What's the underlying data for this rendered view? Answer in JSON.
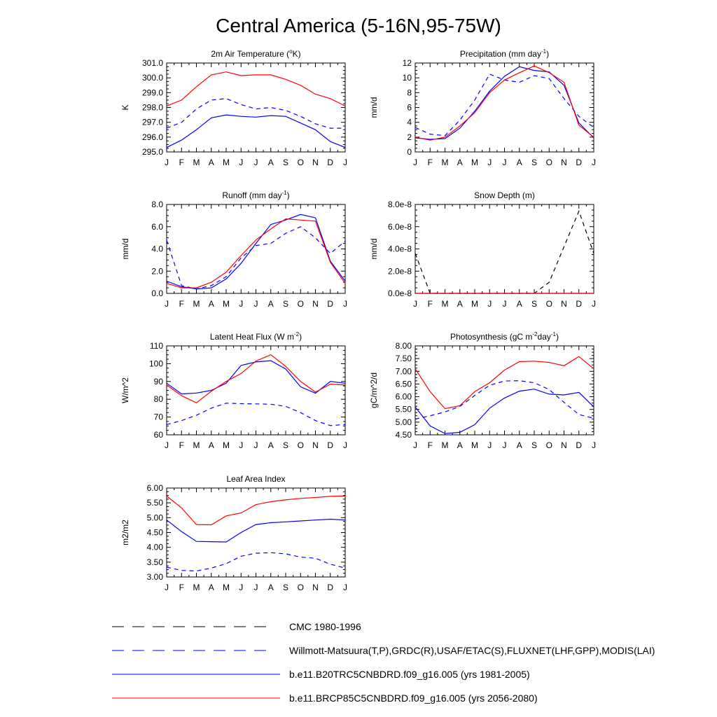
{
  "page_title": "Central America (5-16N,95-75W)",
  "months": [
    "J",
    "F",
    "M",
    "A",
    "M",
    "J",
    "J",
    "A",
    "S",
    "O",
    "N",
    "D",
    "J"
  ],
  "series_styles": {
    "obs_cmc": {
      "color": "#000000",
      "dash": true
    },
    "obs": {
      "color": "#0000ff",
      "dash": true
    },
    "model_hist": {
      "color": "#0000ff",
      "dash": false
    },
    "model_future": {
      "color": "#ff0000",
      "dash": false
    }
  },
  "legend": [
    {
      "key": "obs_cmc",
      "label": "CMC 1980-1996"
    },
    {
      "key": "obs",
      "label": "Willmott-Matsuura(T,P),GRDC(R),USAF/ETAC(S),FLUXNET(LHF,GPP),MODIS(LAI)"
    },
    {
      "key": "model_hist",
      "label": "b.e11.B20TRC5CNBDRD.f09_g16.005 (yrs 1981-2005)"
    },
    {
      "key": "model_future",
      "label": "b.e11.BRCP85C5CNBDRD.f09_g16.005 (yrs 2056-2080)"
    }
  ],
  "chart_data": [
    {
      "id": "tsa",
      "type": "line",
      "title_parts": [
        "2m Air Temperature (",
        {
          "sup": "o"
        },
        "K)"
      ],
      "ylabel": "K",
      "ylim": [
        295.0,
        301.0
      ],
      "yticks": [
        295.0,
        296.0,
        297.0,
        298.0,
        299.0,
        300.0,
        301.0
      ],
      "ytick_labels": [
        "295.0",
        "296.0",
        "297.0",
        "298.0",
        "299.0",
        "300.0",
        "301.0"
      ],
      "series": [
        {
          "key": "obs",
          "name": "Willmott-Matsuura",
          "values": [
            296.6,
            297.0,
            297.9,
            298.5,
            298.6,
            298.2,
            297.9,
            298.0,
            297.8,
            297.4,
            296.9,
            296.6,
            296.6
          ]
        },
        {
          "key": "model_hist",
          "name": "1981-2005",
          "values": [
            295.3,
            295.8,
            296.5,
            297.3,
            297.5,
            297.4,
            297.35,
            297.45,
            297.4,
            296.95,
            296.5,
            295.7,
            295.3
          ]
        },
        {
          "key": "model_future",
          "name": "2056-2080",
          "values": [
            298.1,
            298.5,
            299.4,
            300.2,
            300.4,
            300.15,
            300.2,
            300.2,
            299.9,
            299.5,
            298.9,
            298.6,
            298.1
          ]
        }
      ]
    },
    {
      "id": "prect",
      "type": "line",
      "title_parts": [
        "Precipitation (mm day",
        {
          "sup": "-1"
        },
        ")"
      ],
      "ylabel": "mm/d",
      "ylim": [
        0,
        12
      ],
      "yticks": [
        0,
        2,
        4,
        6,
        8,
        10,
        12
      ],
      "ytick_labels": [
        "0",
        "2",
        "4",
        "6",
        "8",
        "10",
        "12"
      ],
      "series": [
        {
          "key": "obs",
          "name": "Willmott-Matsuura",
          "values": [
            3.3,
            2.4,
            2.2,
            4.3,
            7.0,
            10.5,
            9.7,
            9.4,
            10.3,
            9.9,
            7.2,
            4.8,
            3.3
          ]
        },
        {
          "key": "model_hist",
          "name": "1981-2005",
          "values": [
            1.9,
            1.7,
            1.8,
            3.2,
            5.5,
            8.2,
            10.2,
            11.5,
            11.0,
            10.8,
            9.0,
            3.9,
            1.9
          ]
        },
        {
          "key": "model_future",
          "name": "2056-2080",
          "values": [
            2.0,
            1.6,
            2.0,
            3.5,
            5.3,
            8.0,
            9.7,
            10.7,
            11.6,
            10.7,
            9.4,
            3.6,
            2.0
          ]
        }
      ]
    },
    {
      "id": "runoff",
      "type": "line",
      "title_parts": [
        "Runoff (mm day",
        {
          "sup": "-1"
        },
        ")"
      ],
      "ylabel": "mm/d",
      "ylim": [
        0,
        8
      ],
      "yticks": [
        0,
        2,
        4,
        6,
        8
      ],
      "ytick_labels": [
        "0.0",
        "2.0",
        "4.0",
        "6.0",
        "8.0"
      ],
      "series": [
        {
          "key": "obs",
          "name": "GRDC",
          "values": [
            4.8,
            0.7,
            0.4,
            0.7,
            1.5,
            3.2,
            4.3,
            4.5,
            5.4,
            6.0,
            5.0,
            3.6,
            4.7
          ]
        },
        {
          "key": "model_hist",
          "name": "1981-2005",
          "values": [
            1.1,
            0.6,
            0.4,
            0.5,
            1.3,
            2.7,
            4.5,
            6.2,
            6.6,
            7.1,
            6.8,
            2.9,
            1.1
          ]
        },
        {
          "key": "model_future",
          "name": "2056-2080",
          "values": [
            0.9,
            0.5,
            0.5,
            1.0,
            1.9,
            3.4,
            4.8,
            5.8,
            6.7,
            6.6,
            6.5,
            2.8,
            0.9
          ]
        }
      ]
    },
    {
      "id": "snowdp",
      "type": "line",
      "title_parts": [
        "Snow Depth (m)"
      ],
      "ylabel": "mm/d",
      "ylim": [
        0,
        8e-08
      ],
      "yticks": [
        0,
        2e-08,
        4e-08,
        6e-08,
        8e-08
      ],
      "ytick_labels": [
        "0.0e-8",
        "2.0e-8",
        "4.0e-8",
        "6.0e-8",
        "8.0e-8"
      ],
      "series": [
        {
          "key": "obs_cmc",
          "name": "CMC 1980-1996",
          "values": [
            3.6e-08,
            0,
            0,
            0,
            0,
            0,
            0,
            0,
            0,
            1e-08,
            4.2e-08,
            7.4e-08,
            3.6e-08
          ]
        },
        {
          "key": "model_hist",
          "name": "1981-2005",
          "values": [
            0,
            0,
            0,
            0,
            0,
            0,
            0,
            0,
            0,
            0,
            0,
            0,
            0
          ]
        },
        {
          "key": "model_future",
          "name": "2056-2080",
          "values": [
            0,
            0,
            0,
            0,
            0,
            0,
            0,
            0,
            0,
            0,
            0,
            0,
            0
          ]
        }
      ]
    },
    {
      "id": "lhf",
      "type": "line",
      "title_parts": [
        "Latent Heat Flux (W m",
        {
          "sup": "-2"
        },
        ")"
      ],
      "ylabel": "W/m^2",
      "ylim": [
        60,
        110
      ],
      "yticks": [
        60,
        70,
        80,
        90,
        100,
        110
      ],
      "ytick_labels": [
        "60",
        "70",
        "80",
        "90",
        "100",
        "110"
      ],
      "series": [
        {
          "key": "obs",
          "name": "FLUXNET",
          "values": [
            65.8,
            68.0,
            71.0,
            75.0,
            77.8,
            77.5,
            77.4,
            77.2,
            76.0,
            72.5,
            68.0,
            65.2,
            65.8
          ]
        },
        {
          "key": "model_hist",
          "name": "1981-2005",
          "values": [
            89.0,
            83.0,
            83.5,
            85.0,
            89.0,
            99.0,
            101.0,
            101.7,
            97.0,
            87.0,
            83.4,
            90.0,
            89.0
          ]
        },
        {
          "key": "model_future",
          "name": "2056-2080",
          "values": [
            88.0,
            82.0,
            78.0,
            84.5,
            90.0,
            94.5,
            101.5,
            105.0,
            98.5,
            90.0,
            84.0,
            88.5,
            88.0
          ]
        }
      ]
    },
    {
      "id": "gpp",
      "type": "line",
      "title_parts": [
        "Photosynthesis (gC m",
        {
          "sup": "-2"
        },
        "day",
        {
          "sup": "-1"
        },
        ")"
      ],
      "ylabel": "gC/m^2/d",
      "ylim": [
        4.5,
        8.0
      ],
      "yticks": [
        4.5,
        5.0,
        5.5,
        6.0,
        6.5,
        7.0,
        7.5,
        8.0
      ],
      "ytick_labels": [
        "4.50",
        "5.00",
        "5.50",
        "6.00",
        "6.50",
        "7.00",
        "7.50",
        "8.00"
      ],
      "series": [
        {
          "key": "obs",
          "name": "FLUXNET",
          "values": [
            5.12,
            5.25,
            5.4,
            5.62,
            6.05,
            6.45,
            6.62,
            6.63,
            6.55,
            6.28,
            5.78,
            5.3,
            5.15
          ]
        },
        {
          "key": "model_hist",
          "name": "1981-2005",
          "values": [
            5.6,
            4.85,
            4.55,
            4.6,
            4.9,
            5.55,
            5.95,
            6.22,
            6.3,
            6.1,
            6.07,
            6.17,
            5.6
          ]
        },
        {
          "key": "model_future",
          "name": "2056-2080",
          "values": [
            7.1,
            6.2,
            5.53,
            5.65,
            6.2,
            6.55,
            7.05,
            7.38,
            7.4,
            7.35,
            7.22,
            7.58,
            7.1
          ]
        }
      ]
    },
    {
      "id": "lai",
      "type": "line",
      "title_parts": [
        "Leaf Area Index"
      ],
      "ylabel": "m2/m2",
      "ylim": [
        3.0,
        6.0
      ],
      "yticks": [
        3.0,
        3.5,
        4.0,
        4.5,
        5.0,
        5.5,
        6.0
      ],
      "ytick_labels": [
        "3.00",
        "3.50",
        "4.00",
        "4.50",
        "5.00",
        "5.50",
        "6.00"
      ],
      "series": [
        {
          "key": "obs",
          "name": "MODIS",
          "values": [
            3.33,
            3.22,
            3.2,
            3.3,
            3.45,
            3.7,
            3.8,
            3.82,
            3.78,
            3.67,
            3.63,
            3.43,
            3.3
          ]
        },
        {
          "key": "model_hist",
          "name": "1981-2005",
          "values": [
            4.92,
            4.53,
            4.2,
            4.19,
            4.18,
            4.5,
            4.77,
            4.83,
            4.86,
            4.89,
            4.92,
            4.95,
            4.92
          ]
        },
        {
          "key": "model_future",
          "name": "2056-2080",
          "values": [
            5.73,
            5.33,
            4.77,
            4.76,
            5.06,
            5.16,
            5.44,
            5.54,
            5.6,
            5.65,
            5.68,
            5.72,
            5.73
          ]
        }
      ]
    }
  ]
}
